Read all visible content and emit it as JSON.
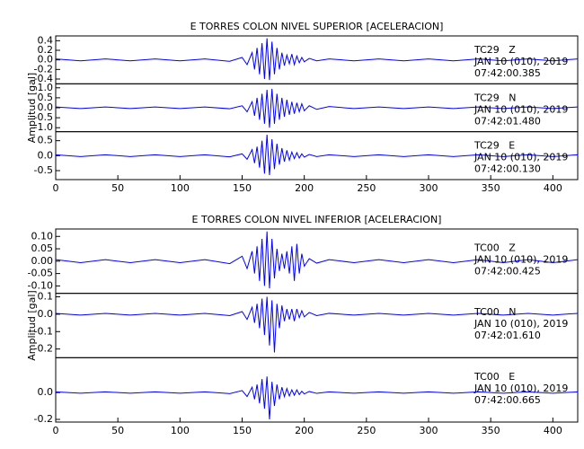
{
  "chart_data": [
    {
      "type": "line",
      "title": "E TORRES COLON NIVEL SUPERIOR [ACELERACION]",
      "ylabel": "Amplitud [gal]",
      "color": "#0000ff",
      "xlim": [
        0,
        420
      ],
      "xticks": [
        0,
        50,
        100,
        150,
        200,
        250,
        300,
        350,
        400
      ],
      "x": [
        0,
        20,
        40,
        60,
        80,
        100,
        120,
        140,
        150,
        154,
        158,
        160,
        162,
        164,
        166,
        168,
        170,
        172,
        174,
        176,
        178,
        180,
        182,
        184,
        186,
        188,
        190,
        192,
        194,
        196,
        198,
        200,
        204,
        210,
        220,
        240,
        260,
        280,
        300,
        320,
        340,
        360,
        380,
        400,
        420
      ],
      "subplots": [
        {
          "station": "TC29   Z",
          "date": "JAN 10 (010), 2019",
          "time": "07:42:00.385",
          "ylim": [
            -0.5,
            0.5
          ],
          "yticks": [
            0.4,
            0.2,
            {
              "value": 0,
              "label": "0.0"
            },
            -0.2,
            -0.4
          ],
          "values": [
            0.02,
            -0.02,
            0.02,
            -0.02,
            0.02,
            -0.02,
            0.02,
            -0.03,
            0.05,
            -0.1,
            0.15,
            -0.2,
            0.25,
            -0.3,
            0.35,
            -0.4,
            0.45,
            -0.42,
            0.38,
            -0.3,
            0.25,
            -0.2,
            0.15,
            -0.12,
            0.1,
            -0.08,
            0.12,
            -0.1,
            0.08,
            -0.06,
            0.05,
            -0.04,
            0.03,
            -0.02,
            0.02,
            -0.02,
            0.02,
            -0.02,
            0.02,
            -0.02,
            0.02,
            -0.02,
            0.02,
            -0.02,
            0.02
          ]
        },
        {
          "station": "TC29   N",
          "date": "JAN 10 (010), 2019",
          "time": "07:42:01.480",
          "ylim": [
            -1.2,
            1.2
          ],
          "yticks": [
            {
              "value": 1,
              "label": "1.0"
            },
            0.5,
            {
              "value": 0,
              "label": "0.0"
            },
            -0.5,
            {
              "value": -1,
              "label": "-1.0"
            }
          ],
          "values": [
            0.04,
            -0.04,
            0.04,
            -0.04,
            0.04,
            -0.04,
            0.04,
            -0.05,
            0.1,
            -0.2,
            0.3,
            -0.4,
            0.5,
            -0.6,
            0.7,
            -0.8,
            0.9,
            -1.0,
            0.95,
            -0.8,
            0.7,
            -0.6,
            0.5,
            -0.45,
            0.4,
            -0.35,
            0.3,
            -0.3,
            0.25,
            -0.2,
            0.2,
            -0.15,
            0.1,
            -0.08,
            0.06,
            -0.04,
            0.04,
            -0.04,
            0.04,
            -0.04,
            0.04,
            -0.04,
            0.04,
            -0.04,
            0.04
          ]
        },
        {
          "station": "TC29   E",
          "date": "JAN 10 (010), 2019",
          "time": "07:42:00.130",
          "ylim": [
            -0.8,
            0.8
          ],
          "yticks": [
            0.5,
            {
              "value": 0,
              "label": "0.0"
            },
            -0.5
          ],
          "values": [
            0.03,
            -0.03,
            0.03,
            -0.03,
            0.03,
            -0.03,
            0.03,
            -0.04,
            0.06,
            -0.12,
            0.2,
            -0.25,
            0.3,
            -0.4,
            0.5,
            -0.6,
            0.7,
            -0.65,
            0.55,
            -0.45,
            0.4,
            -0.3,
            0.25,
            -0.2,
            0.18,
            -0.15,
            0.12,
            -0.1,
            0.1,
            -0.08,
            0.06,
            -0.05,
            0.04,
            -0.03,
            0.03,
            -0.03,
            0.03,
            -0.03,
            0.03,
            -0.03,
            0.03,
            -0.03,
            0.03,
            -0.03,
            0.03
          ]
        }
      ]
    },
    {
      "type": "line",
      "title": "E TORRES COLON NIVEL INFERIOR [ACELERACION]",
      "ylabel": "Amplitud [gal]",
      "color": "#0000ff",
      "xlim": [
        0,
        420
      ],
      "xticks": [
        0,
        50,
        100,
        150,
        200,
        250,
        300,
        350,
        400
      ],
      "x": [
        0,
        20,
        40,
        60,
        80,
        100,
        120,
        140,
        150,
        154,
        158,
        160,
        162,
        164,
        166,
        168,
        170,
        172,
        174,
        176,
        178,
        180,
        182,
        184,
        186,
        188,
        190,
        192,
        194,
        196,
        198,
        200,
        204,
        210,
        220,
        240,
        260,
        280,
        300,
        320,
        340,
        360,
        380,
        400,
        420
      ],
      "subplots": [
        {
          "station": "TC00   Z",
          "date": "JAN 10 (010), 2019",
          "time": "07:42:00.425",
          "ylim": [
            -0.13,
            0.13
          ],
          "yticks": [
            {
              "value": 0.1,
              "label": "0.10"
            },
            0.05,
            {
              "value": 0,
              "label": "0.00"
            },
            -0.05,
            {
              "value": -0.1,
              "label": "-0.10"
            }
          ],
          "values": [
            0.006,
            -0.006,
            0.006,
            -0.006,
            0.006,
            -0.006,
            0.006,
            -0.01,
            0.02,
            -0.03,
            0.04,
            -0.05,
            0.06,
            -0.08,
            0.09,
            -0.1,
            0.12,
            -0.11,
            0.09,
            -0.07,
            0.05,
            -0.04,
            0.03,
            -0.03,
            0.04,
            -0.05,
            0.06,
            -0.08,
            0.07,
            -0.05,
            0.03,
            -0.02,
            0.01,
            -0.008,
            0.006,
            -0.006,
            0.006,
            -0.006,
            0.006,
            -0.006,
            0.006,
            -0.006,
            0.006,
            -0.006,
            0.006
          ]
        },
        {
          "station": "TC00   N",
          "date": "JAN 10 (010), 2019",
          "time": "07:42:01.610",
          "ylim": [
            -0.25,
            0.12
          ],
          "yticks": [
            0.1,
            {
              "value": 0,
              "label": "0.0"
            },
            -0.1,
            -0.2
          ],
          "values": [
            0.005,
            -0.005,
            0.005,
            -0.005,
            0.005,
            -0.005,
            0.005,
            -0.008,
            0.015,
            -0.03,
            0.04,
            -0.05,
            0.06,
            -0.08,
            0.09,
            -0.12,
            0.1,
            -0.18,
            0.08,
            -0.22,
            0.06,
            -0.08,
            0.05,
            -0.04,
            0.03,
            -0.03,
            0.03,
            -0.04,
            0.03,
            -0.02,
            0.02,
            -0.015,
            0.01,
            -0.008,
            0.005,
            -0.005,
            0.005,
            -0.005,
            0.005,
            -0.005,
            0.005,
            -0.005,
            0.005,
            -0.005,
            0.005
          ]
        },
        {
          "station": "TC00   E",
          "date": "JAN 10 (010), 2019",
          "time": "07:42:00.665",
          "ylim": [
            -0.22,
            0.26
          ],
          "yticks": [
            {
              "value": 0,
              "label": "0.0"
            },
            -0.2
          ],
          "values": [
            0.005,
            -0.005,
            0.005,
            -0.005,
            0.005,
            -0.005,
            0.005,
            -0.008,
            0.015,
            -0.03,
            0.04,
            -0.05,
            0.06,
            -0.08,
            0.1,
            -0.12,
            0.12,
            -0.2,
            0.08,
            -0.1,
            0.06,
            -0.05,
            0.04,
            -0.03,
            0.03,
            -0.025,
            0.02,
            -0.02,
            0.02,
            -0.015,
            0.01,
            -0.01,
            0.008,
            -0.006,
            0.005,
            -0.005,
            0.005,
            -0.005,
            0.005,
            -0.005,
            0.005,
            -0.005,
            0.005,
            -0.005,
            0.005
          ]
        }
      ]
    }
  ]
}
